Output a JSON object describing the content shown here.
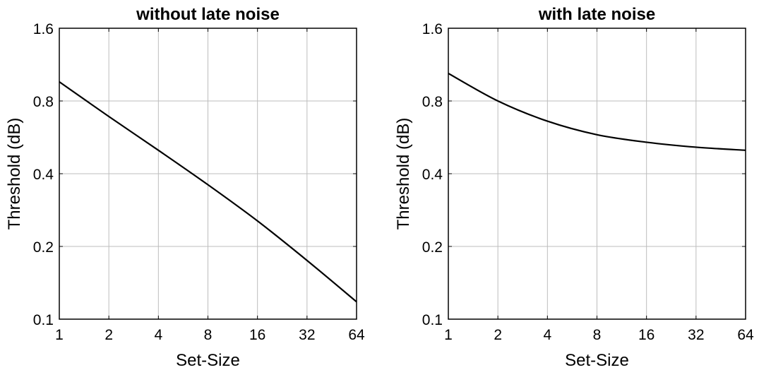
{
  "chart_data": [
    {
      "type": "line",
      "title": "without late noise",
      "xlabel": "Set-Size",
      "ylabel": "Threshold (dB)",
      "xscale": "log2",
      "yscale": "log2",
      "xlim": [
        1,
        64
      ],
      "ylim": [
        0.1,
        1.6
      ],
      "xticks": [
        1,
        2,
        4,
        8,
        16,
        32,
        64
      ],
      "yticks": [
        0.1,
        0.2,
        0.4,
        0.8,
        1.6
      ],
      "xtick_labels": [
        "1",
        "2",
        "4",
        "8",
        "16",
        "32",
        "64"
      ],
      "ytick_labels": [
        "0.1",
        "0.2",
        "0.4",
        "0.8",
        "1.6"
      ],
      "grid": true,
      "series": [
        {
          "x": [
            1,
            2,
            4,
            8,
            16,
            32,
            64
          ],
          "y": [
            0.96,
            0.69,
            0.5,
            0.36,
            0.255,
            0.175,
            0.118
          ]
        }
      ]
    },
    {
      "type": "line",
      "title": "with late noise",
      "xlabel": "Set-Size",
      "ylabel": "Threshold (dB)",
      "xscale": "log2",
      "yscale": "log2",
      "xlim": [
        1,
        64
      ],
      "ylim": [
        0.1,
        1.6
      ],
      "xticks": [
        1,
        2,
        4,
        8,
        16,
        32,
        64
      ],
      "yticks": [
        0.1,
        0.2,
        0.4,
        0.8,
        1.6
      ],
      "xtick_labels": [
        "1",
        "2",
        "4",
        "8",
        "16",
        "32",
        "64"
      ],
      "ytick_labels": [
        "0.1",
        "0.2",
        "0.4",
        "0.8",
        "1.6"
      ],
      "grid": true,
      "series": [
        {
          "x": [
            1,
            2,
            4,
            8,
            16,
            32,
            64
          ],
          "y": [
            1.04,
            0.8,
            0.66,
            0.58,
            0.54,
            0.515,
            0.5
          ]
        }
      ]
    }
  ]
}
